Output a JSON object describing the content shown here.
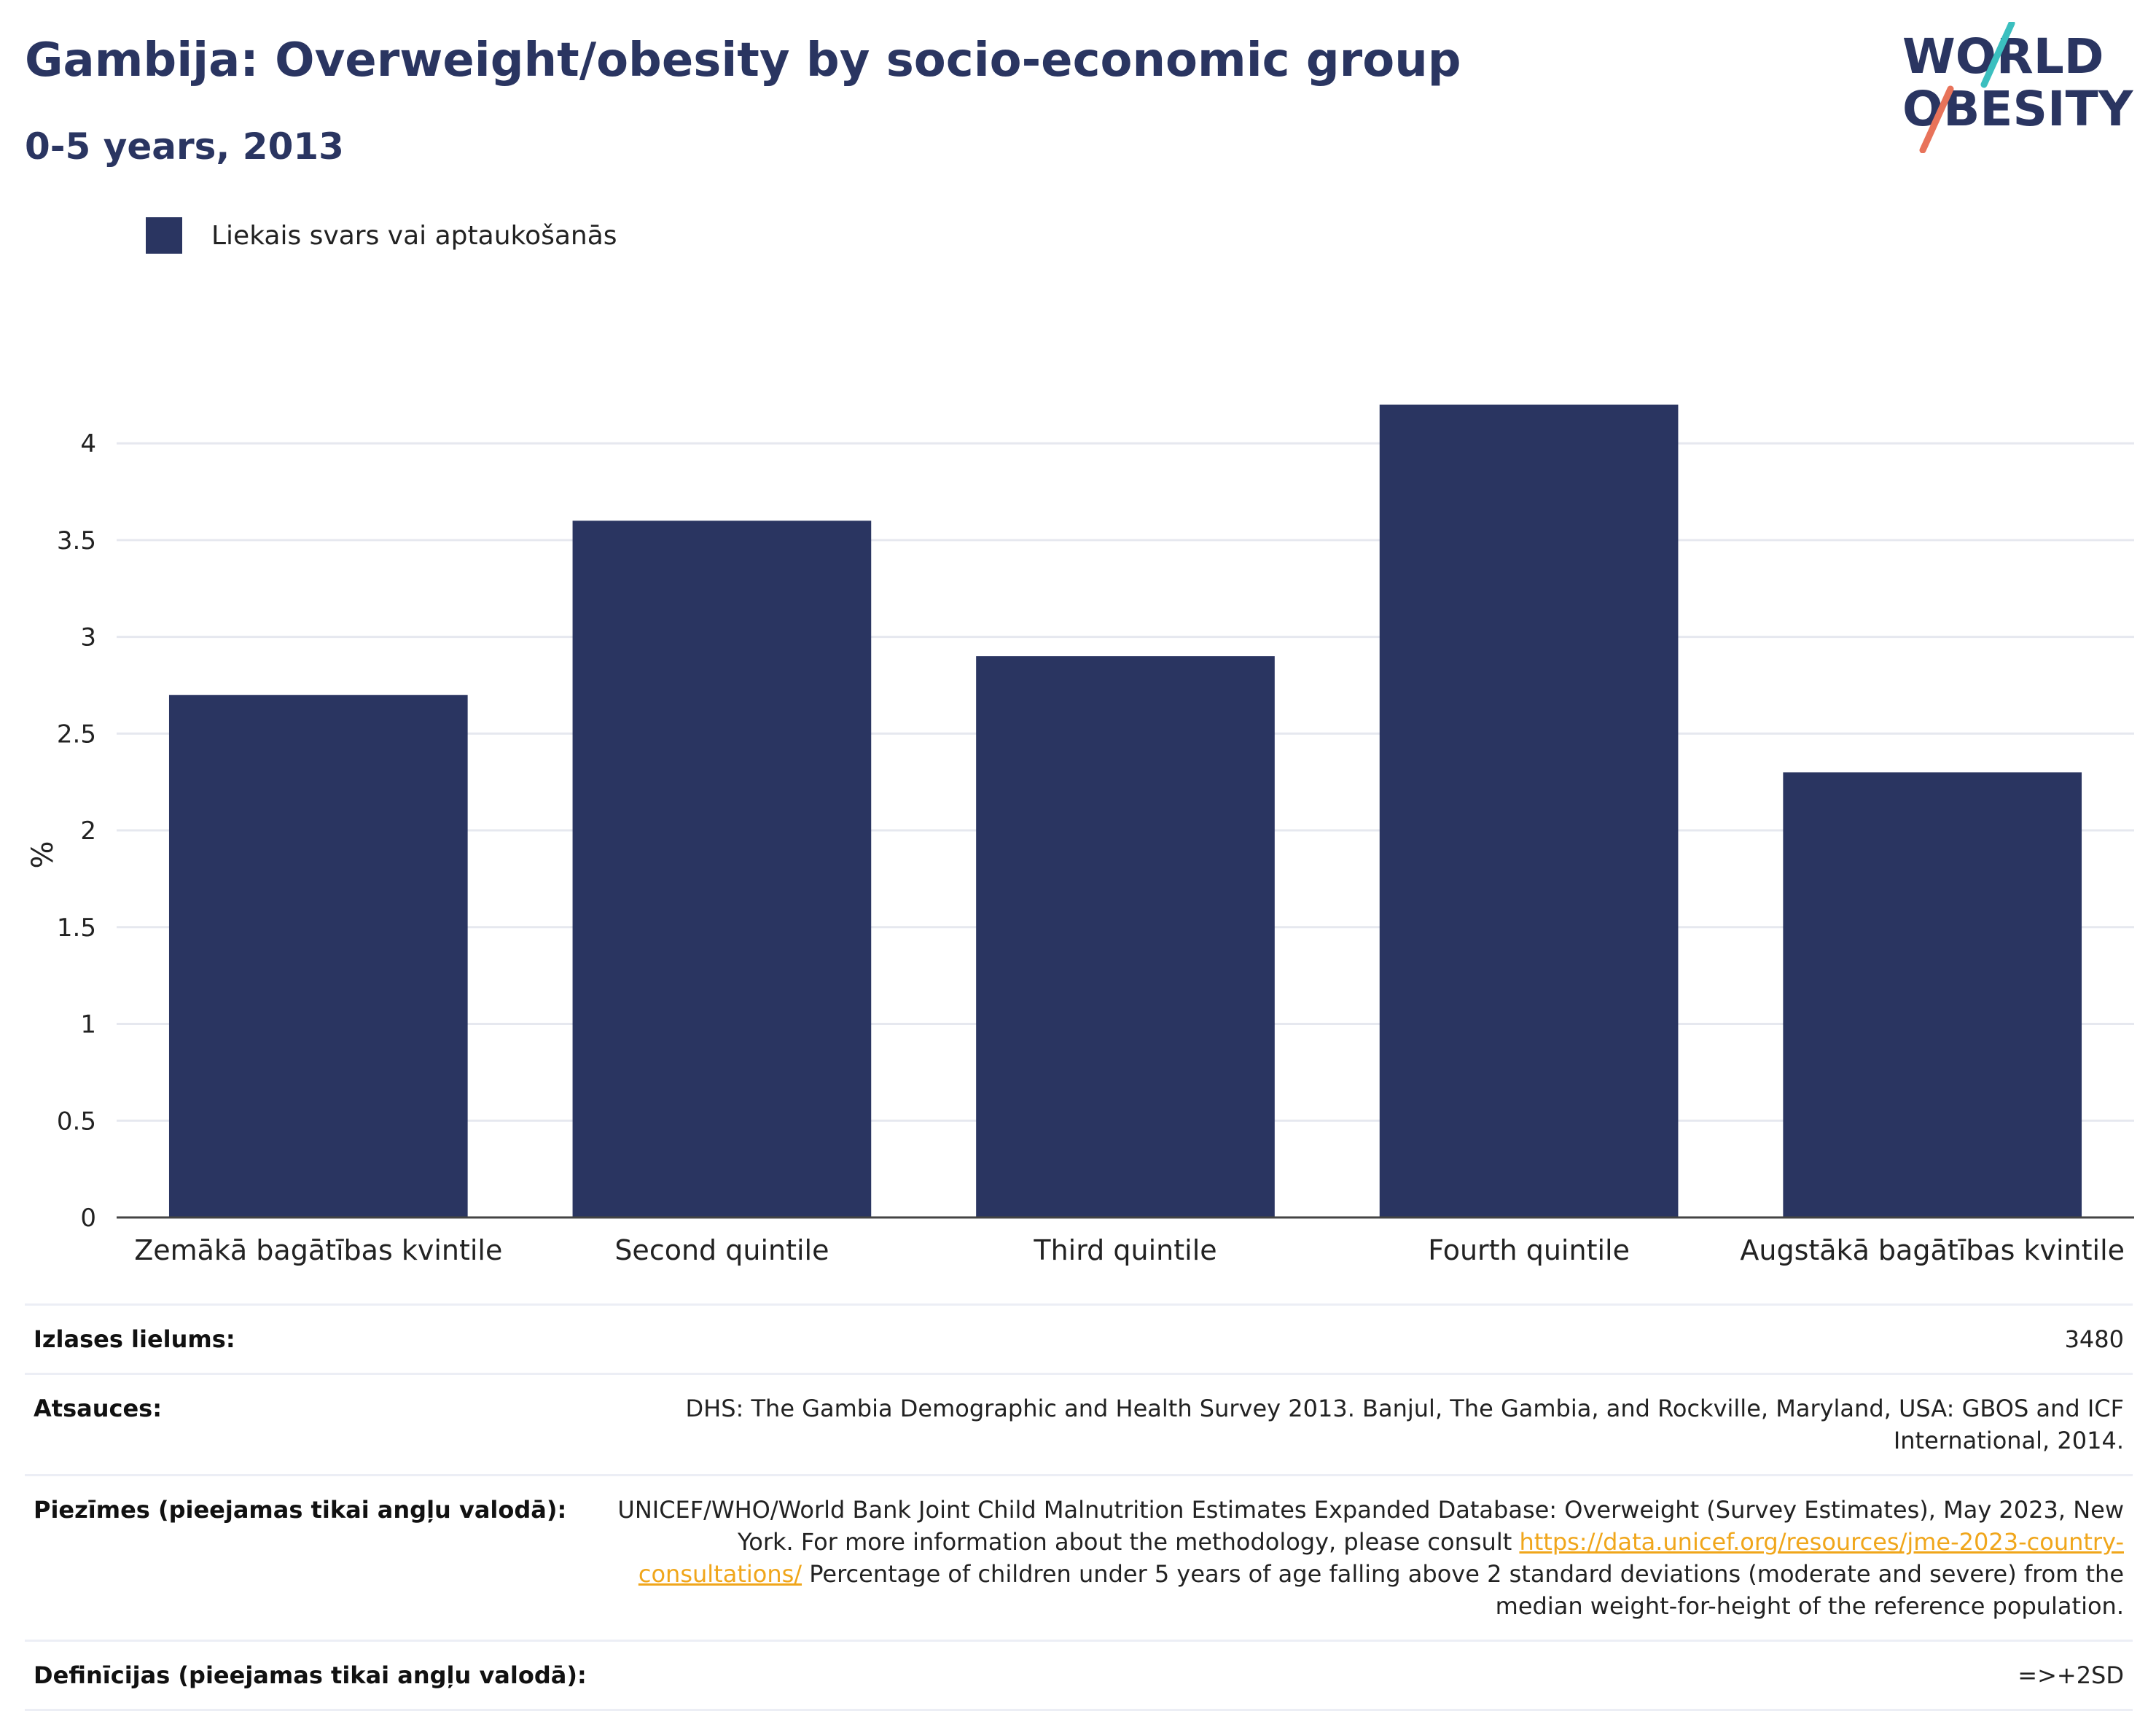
{
  "header": {
    "title": "Gambija: Overweight/obesity by socio-economic group",
    "subtitle": "0-5 years, 2013"
  },
  "logo": {
    "line1": "WORLD",
    "line2": "OBESITY",
    "stroke_teal": "#3bbfbf",
    "stroke_coral": "#e8735a",
    "text_color": "#2a3561"
  },
  "legend": {
    "label": "Liekais svars vai aptaukošanās",
    "color": "#2a3561"
  },
  "chart_data": {
    "type": "bar",
    "categories": [
      "Zemākā bagātības kvintile",
      "Second quintile",
      "Third quintile",
      "Fourth quintile",
      "Augstākā bagātības kvintile"
    ],
    "series": [
      {
        "name": "Liekais svars vai aptaukošanās",
        "values": [
          2.7,
          3.6,
          2.9,
          4.2,
          2.3
        ],
        "color": "#2a3561"
      }
    ],
    "ylabel": "%",
    "ylim": [
      0,
      4.2
    ],
    "yticks": [
      0,
      0.5,
      1,
      1.5,
      2,
      2.5,
      3,
      3.5,
      4
    ],
    "ytick_labels": [
      "0",
      "0.5",
      "1",
      "1.5",
      "2",
      "2.5",
      "3",
      "3.5",
      "4"
    ],
    "grid": true
  },
  "meta": {
    "sample_label": "Izlases lielums:",
    "sample_value": "3480",
    "sources_label": "Atsauces:",
    "sources_value": "DHS: The Gambia Demographic and Health Survey 2013. Banjul, The Gambia, and Rockville, Maryland, USA: GBOS and ICF International, 2014.",
    "notes_label": "Piezīmes (pieejamas tikai angļu valodā):",
    "notes_before": "UNICEF/WHO/World Bank Joint Child Malnutrition Estimates Expanded Database: Overweight (Survey Estimates), May 2023, New York. For more information about the methodology, please consult ",
    "notes_link": "https://data.unicef.org/resources/jme-2023-country-consultations/",
    "notes_after": " Percentage of children under 5 years of age falling above 2 standard deviations (moderate and severe) from the median weight-for-height of the reference population.",
    "definitions_label": "Definīcijas (pieejamas tikai angļu valodā):",
    "definitions_value": "=>+2SD"
  }
}
